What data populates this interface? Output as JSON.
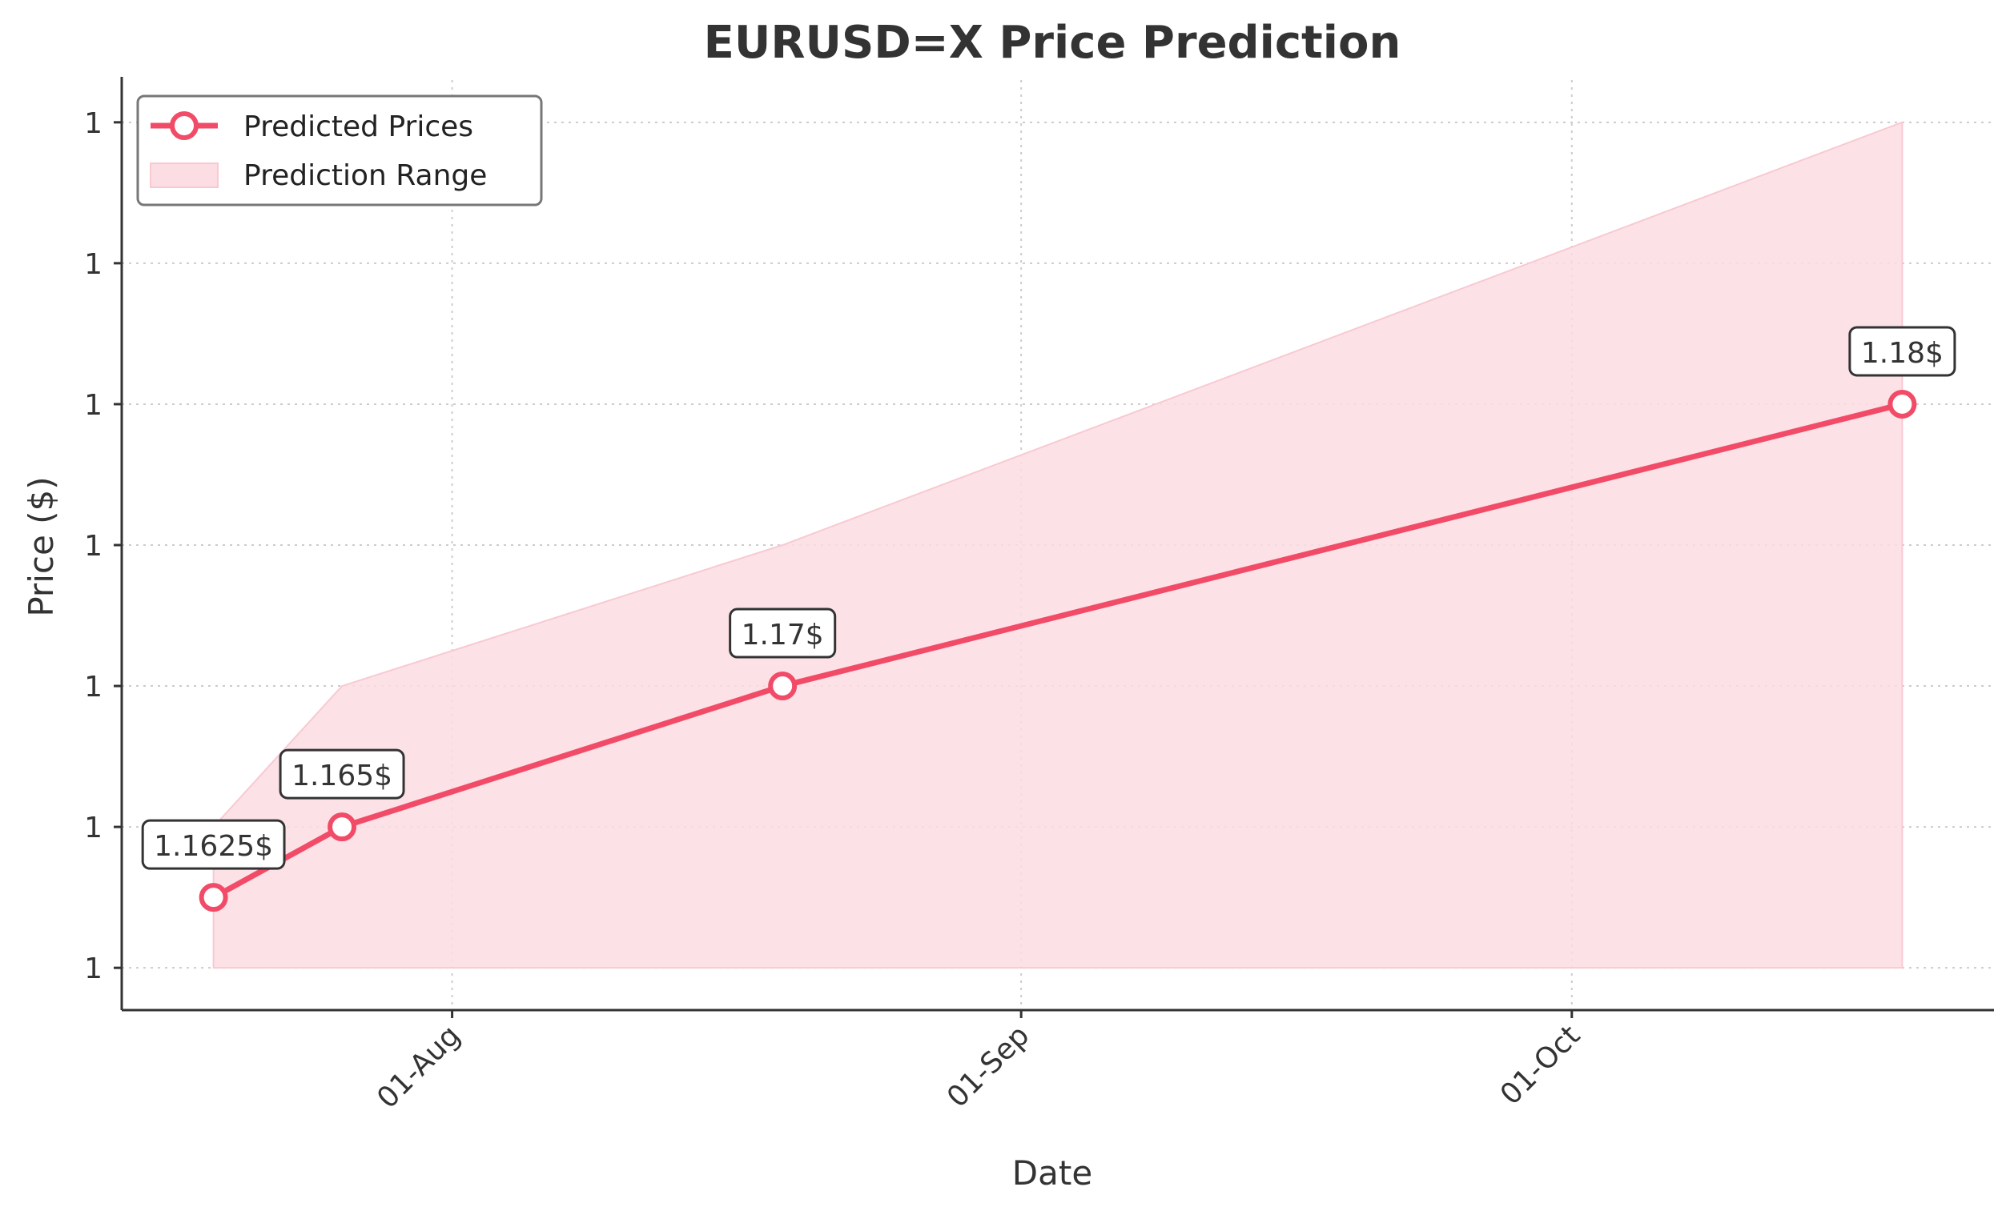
{
  "chart_data": {
    "type": "line",
    "title": "EURUSD=X Price Prediction",
    "xlabel": "Date",
    "ylabel": "Price ($)",
    "x_ticks": [
      {
        "date": "2025-08-01",
        "label": "01-Aug"
      },
      {
        "date": "2025-09-01",
        "label": "01-Sep"
      },
      {
        "date": "2025-10-01",
        "label": "01-Oct"
      }
    ],
    "y_ticks": [
      {
        "value": 1.16,
        "label": "1"
      },
      {
        "value": 1.1625,
        "label": "1"
      },
      {
        "value": 1.165,
        "label": "1"
      },
      {
        "value": 1.1675,
        "label": "1"
      },
      {
        "value": 1.17,
        "label": "1"
      },
      {
        "value": 1.1725,
        "label": "1"
      },
      {
        "value": 1.175,
        "label": "1"
      }
    ],
    "ylim": [
      1.15925,
      1.17575
    ],
    "xlim": [
      "2025-07-14",
      "2025-10-24"
    ],
    "grid": true,
    "legend_position": "top-left",
    "series": [
      {
        "name": "Predicted Prices",
        "type": "line",
        "color": "#f24b68",
        "points": [
          {
            "x": "2025-07-19",
            "y": 1.16125,
            "label": "1.1625$"
          },
          {
            "x": "2025-07-26",
            "y": 1.1625,
            "label": "1.165$"
          },
          {
            "x": "2025-08-19",
            "y": 1.165,
            "label": "1.17$"
          },
          {
            "x": "2025-10-19",
            "y": 1.17,
            "label": "1.18$"
          }
        ]
      },
      {
        "name": "Prediction Range",
        "type": "area",
        "color": "#fcdde3",
        "x": [
          "2025-07-19",
          "2025-07-26",
          "2025-08-19",
          "2025-10-19"
        ],
        "lower": [
          1.16,
          1.16,
          1.16,
          1.16
        ],
        "upper": [
          1.1625,
          1.165,
          1.1675,
          1.175
        ]
      }
    ]
  }
}
